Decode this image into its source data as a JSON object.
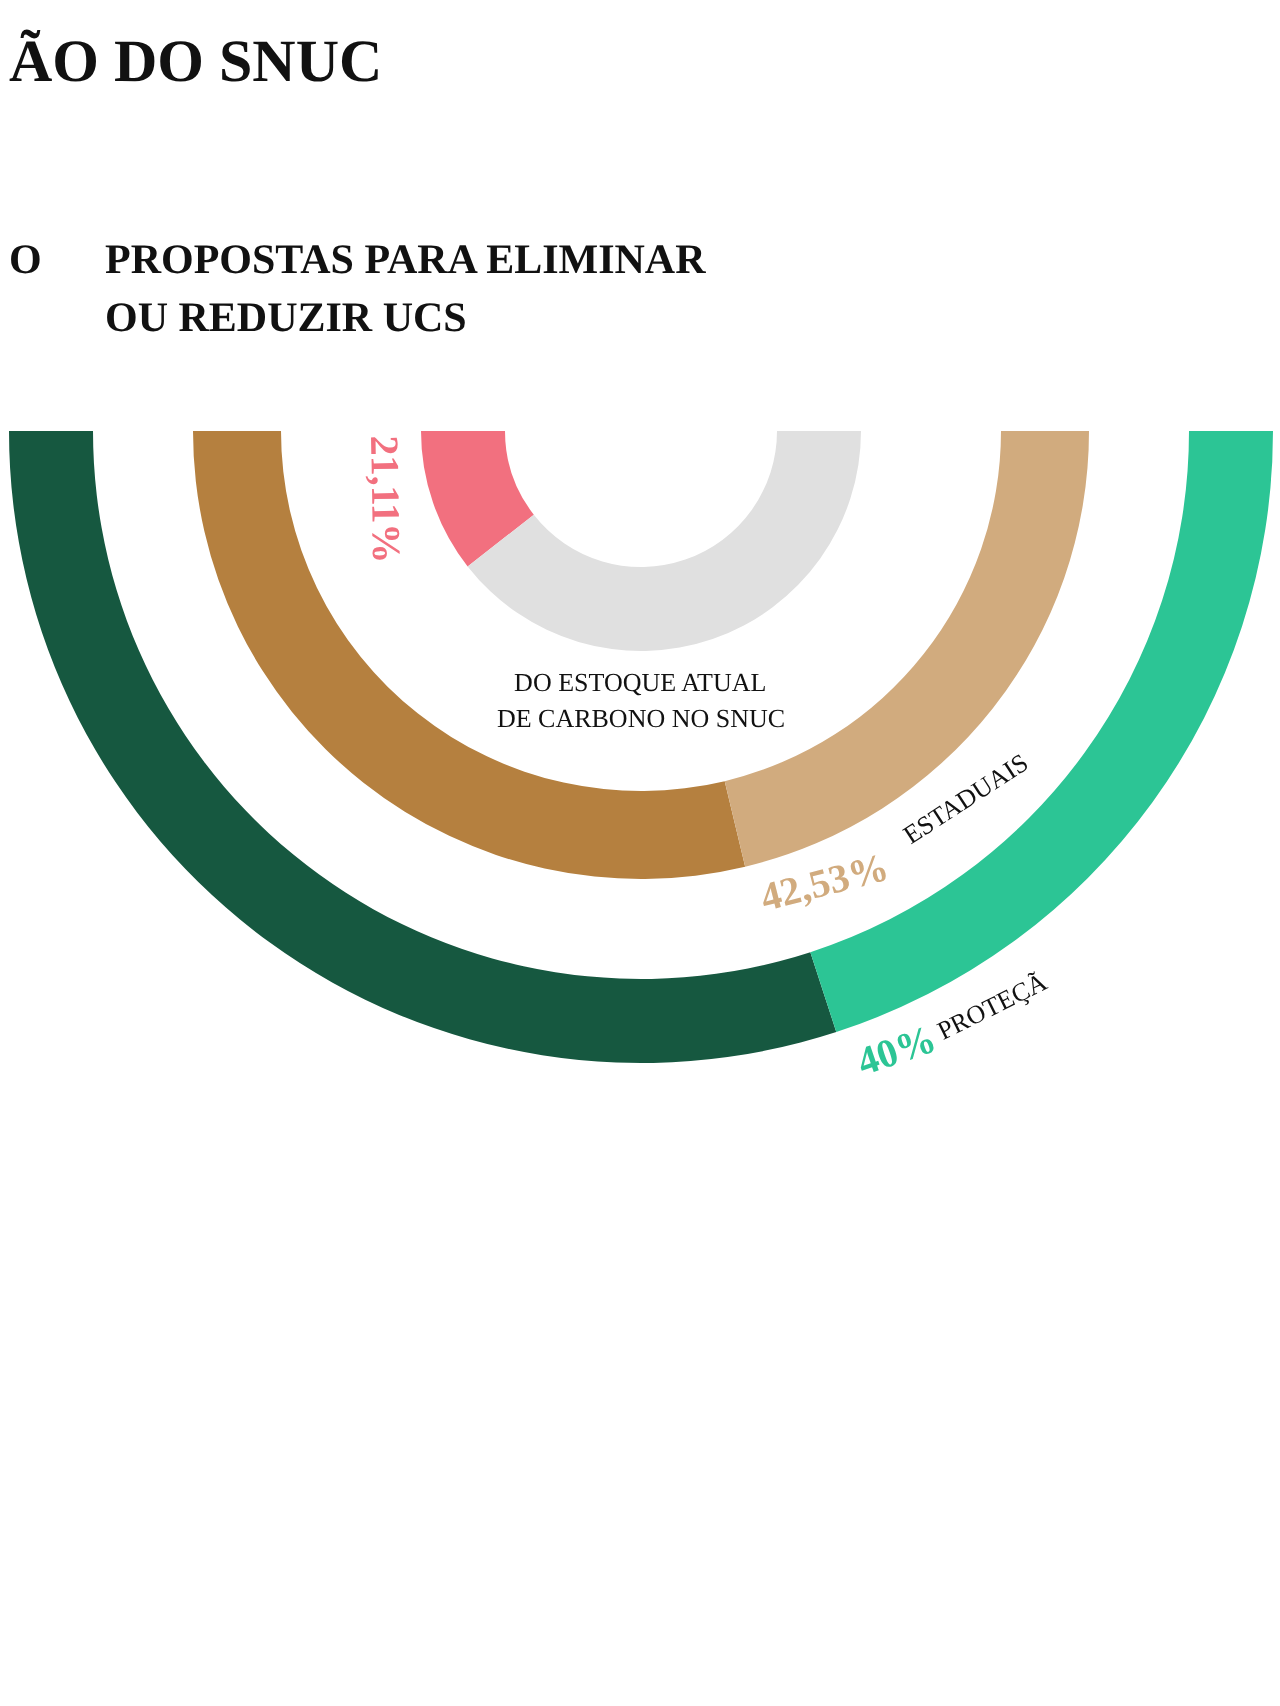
{
  "chart_data": {
    "type": "donut",
    "title": "ÃO DO SNUC",
    "subtitle": "PROPOSTAS PARA ELIMINAR\nOU REDUZIR UCS",
    "annotations": [
      "O",
      "DO ESTOQUE ATUAL DE CARBONO NO SNUC",
      "ESTADUAIS",
      "PROTEÇÃ"
    ],
    "categories": [
      null,
      null
    ],
    "series": [
      {
        "values": [
          21.11,
          78.89
        ],
        "colors": [
          "#f2707f",
          "#e0e0e0"
        ],
        "value_labels": [
          "21,11%",
          null
        ]
      },
      {
        "values": [
          57.47,
          42.53
        ],
        "colors": [
          "#b5803f",
          "#d1ab7e"
        ],
        "value_labels": [
          null,
          "42,53%"
        ]
      },
      {
        "values": [
          60,
          40
        ],
        "colors": [
          "#165840",
          "#2cc595"
        ],
        "value_labels": [
          null,
          "40%"
        ]
      }
    ]
  }
}
